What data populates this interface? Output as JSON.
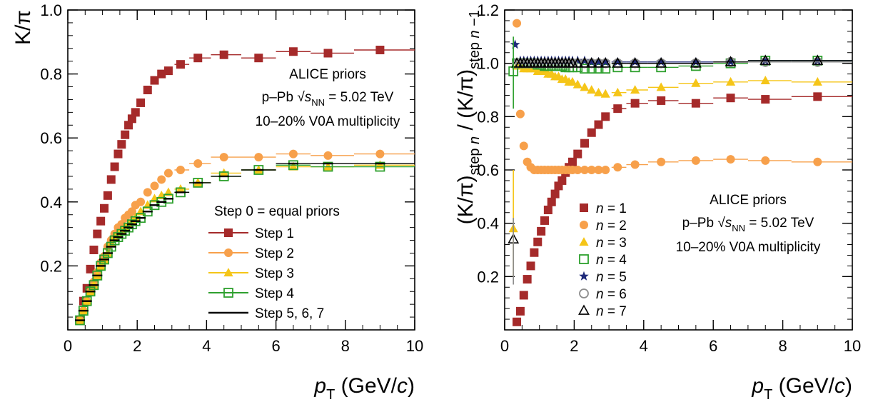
{
  "chart_data": [
    {
      "type": "scatter",
      "xlim": [
        0,
        10
      ],
      "ylim": [
        0,
        1.0
      ],
      "xlabel": "p_T (GeV/c)",
      "ylabel": "K/π",
      "xticks": [
        "0",
        "2",
        "4",
        "6",
        "8",
        "10"
      ],
      "yticks": [
        "0.2",
        "0.4",
        "0.6",
        "0.8",
        "1.0"
      ],
      "annotations": [
        "ALICE priors",
        "p–Pb √s_NN = 5.02 TeV",
        "10–20% V0A multiplicity"
      ],
      "legend_header": "Step 0 = equal priors",
      "legend_position": "bottom-right",
      "series": [
        {
          "name": "Step 1",
          "color": "#a52a2a",
          "marker": "square",
          "x": [
            0.35,
            0.45,
            0.55,
            0.65,
            0.75,
            0.85,
            0.95,
            1.05,
            1.15,
            1.25,
            1.35,
            1.45,
            1.55,
            1.65,
            1.75,
            1.85,
            1.95,
            2.1,
            2.3,
            2.5,
            2.7,
            2.9,
            3.25,
            3.75,
            4.5,
            5.5,
            6.5,
            7.5,
            9.0
          ],
          "y": [
            0.03,
            0.09,
            0.13,
            0.19,
            0.25,
            0.3,
            0.34,
            0.38,
            0.42,
            0.47,
            0.51,
            0.55,
            0.58,
            0.61,
            0.64,
            0.66,
            0.68,
            0.71,
            0.75,
            0.78,
            0.8,
            0.81,
            0.83,
            0.85,
            0.86,
            0.85,
            0.87,
            0.865,
            0.875
          ]
        },
        {
          "name": "Step 2",
          "color": "#f7a04b",
          "marker": "circle",
          "x": [
            0.35,
            0.45,
            0.55,
            0.65,
            0.75,
            0.85,
            0.95,
            1.05,
            1.15,
            1.25,
            1.35,
            1.45,
            1.55,
            1.65,
            1.75,
            1.85,
            1.95,
            2.1,
            2.3,
            2.5,
            2.7,
            2.9,
            3.25,
            3.75,
            4.5,
            5.5,
            6.5,
            7.5,
            9.0
          ],
          "y": [
            0.03,
            0.06,
            0.09,
            0.12,
            0.15,
            0.18,
            0.21,
            0.23,
            0.26,
            0.28,
            0.3,
            0.32,
            0.33,
            0.35,
            0.36,
            0.37,
            0.39,
            0.4,
            0.43,
            0.45,
            0.47,
            0.49,
            0.5,
            0.52,
            0.54,
            0.54,
            0.55,
            0.545,
            0.55
          ]
        },
        {
          "name": "Step 3",
          "color": "#f5c518",
          "marker": "triangle",
          "x": [
            0.35,
            0.45,
            0.55,
            0.65,
            0.75,
            0.85,
            0.95,
            1.05,
            1.15,
            1.25,
            1.35,
            1.45,
            1.55,
            1.65,
            1.75,
            1.85,
            1.95,
            2.1,
            2.3,
            2.5,
            2.7,
            2.9,
            3.25,
            3.75,
            4.5,
            5.5,
            6.5,
            7.5,
            9.0
          ],
          "y": [
            0.03,
            0.06,
            0.09,
            0.12,
            0.14,
            0.17,
            0.2,
            0.22,
            0.24,
            0.27,
            0.29,
            0.3,
            0.31,
            0.32,
            0.33,
            0.34,
            0.35,
            0.37,
            0.39,
            0.41,
            0.42,
            0.43,
            0.44,
            0.46,
            0.49,
            0.5,
            0.51,
            0.51,
            0.515
          ]
        },
        {
          "name": "Step 4",
          "color": "#2ea02e",
          "marker": "open-square",
          "x": [
            0.35,
            0.45,
            0.55,
            0.65,
            0.75,
            0.85,
            0.95,
            1.05,
            1.15,
            1.25,
            1.35,
            1.45,
            1.55,
            1.65,
            1.75,
            1.85,
            1.95,
            2.1,
            2.3,
            2.5,
            2.7,
            2.9,
            3.25,
            3.75,
            4.5,
            5.5,
            6.5,
            7.5,
            9.0
          ],
          "y": [
            0.03,
            0.06,
            0.09,
            0.12,
            0.14,
            0.17,
            0.2,
            0.22,
            0.24,
            0.26,
            0.28,
            0.29,
            0.3,
            0.31,
            0.32,
            0.33,
            0.34,
            0.35,
            0.37,
            0.39,
            0.4,
            0.41,
            0.43,
            0.46,
            0.48,
            0.5,
            0.515,
            0.51,
            0.51
          ]
        },
        {
          "name": "Step 5, 6, 7",
          "color": "#000000",
          "marker": "line",
          "x": [
            0.35,
            0.45,
            0.55,
            0.65,
            0.75,
            0.85,
            0.95,
            1.05,
            1.15,
            1.25,
            1.35,
            1.45,
            1.55,
            1.65,
            1.75,
            1.85,
            1.95,
            2.1,
            2.3,
            2.5,
            2.7,
            2.9,
            3.25,
            3.75,
            4.5,
            5.5,
            6.5,
            7.5,
            9.0
          ],
          "y": [
            0.03,
            0.06,
            0.09,
            0.12,
            0.14,
            0.17,
            0.2,
            0.22,
            0.24,
            0.26,
            0.28,
            0.29,
            0.3,
            0.31,
            0.32,
            0.33,
            0.34,
            0.35,
            0.37,
            0.39,
            0.4,
            0.41,
            0.43,
            0.46,
            0.48,
            0.5,
            0.52,
            0.52,
            0.52
          ]
        }
      ]
    },
    {
      "type": "scatter",
      "xlim": [
        0,
        10
      ],
      "ylim": [
        0,
        1.2
      ],
      "xlabel": "p_T (GeV/c)",
      "ylabel": "(K/π)_step n / (K/π)_step n −1",
      "xticks": [
        "0",
        "2",
        "4",
        "6",
        "8",
        "10"
      ],
      "yticks": [
        "0.2",
        "0.4",
        "0.6",
        "0.8",
        "1.0",
        "1.2"
      ],
      "annotations": [
        "ALICE priors",
        "p–Pb √s_NN = 5.02 TeV",
        "10–20% V0A multiplicity"
      ],
      "legend_position": "bottom-center",
      "series": [
        {
          "name": "n = 1",
          "color": "#a52a2a",
          "marker": "square",
          "x": [
            0.35,
            0.45,
            0.55,
            0.65,
            0.75,
            0.85,
            0.95,
            1.05,
            1.15,
            1.25,
            1.35,
            1.45,
            1.55,
            1.65,
            1.75,
            1.85,
            1.95,
            2.1,
            2.3,
            2.5,
            2.7,
            2.9,
            3.25,
            3.75,
            4.5,
            5.5,
            6.5,
            7.5,
            9.0
          ],
          "y": [
            0.03,
            0.07,
            0.13,
            0.19,
            0.24,
            0.29,
            0.33,
            0.37,
            0.41,
            0.45,
            0.48,
            0.51,
            0.54,
            0.56,
            0.59,
            0.61,
            0.63,
            0.66,
            0.7,
            0.74,
            0.77,
            0.8,
            0.83,
            0.85,
            0.86,
            0.85,
            0.87,
            0.865,
            0.875
          ]
        },
        {
          "name": "n = 2",
          "color": "#f7a04b",
          "marker": "circle",
          "x": [
            0.35,
            0.45,
            0.55,
            0.65,
            0.75,
            0.85,
            0.95,
            1.05,
            1.15,
            1.25,
            1.35,
            1.45,
            1.55,
            1.65,
            1.75,
            1.85,
            1.95,
            2.1,
            2.3,
            2.5,
            2.7,
            2.9,
            3.25,
            3.75,
            4.5,
            5.5,
            6.5,
            7.5,
            9.0
          ],
          "y": [
            1.15,
            0.81,
            0.69,
            0.63,
            0.61,
            0.6,
            0.6,
            0.6,
            0.6,
            0.6,
            0.6,
            0.6,
            0.6,
            0.6,
            0.6,
            0.6,
            0.6,
            0.6,
            0.6,
            0.6,
            0.6,
            0.6,
            0.61,
            0.62,
            0.63,
            0.635,
            0.64,
            0.635,
            0.63
          ]
        },
        {
          "name": "n = 3",
          "color": "#f5c518",
          "marker": "triangle",
          "x": [
            0.25,
            0.35,
            0.45,
            0.55,
            0.65,
            0.75,
            0.85,
            0.95,
            1.05,
            1.15,
            1.25,
            1.35,
            1.45,
            1.55,
            1.65,
            1.75,
            1.85,
            1.95,
            2.1,
            2.3,
            2.5,
            2.7,
            2.9,
            3.25,
            3.75,
            4.5,
            5.5,
            6.5,
            7.5,
            9.0
          ],
          "y": [
            0.38,
            0.99,
            0.99,
            0.98,
            0.98,
            0.98,
            0.98,
            0.97,
            0.97,
            0.97,
            0.96,
            0.96,
            0.95,
            0.95,
            0.94,
            0.94,
            0.93,
            0.93,
            0.92,
            0.91,
            0.9,
            0.89,
            0.885,
            0.89,
            0.9,
            0.91,
            0.925,
            0.93,
            0.935,
            0.93
          ]
        },
        {
          "name": "n = 4",
          "color": "#2ea02e",
          "marker": "open-square",
          "x": [
            0.25,
            0.35,
            0.45,
            0.55,
            0.65,
            0.75,
            0.85,
            0.95,
            1.05,
            1.15,
            1.25,
            1.35,
            1.45,
            1.55,
            1.65,
            1.75,
            1.85,
            1.95,
            2.1,
            2.3,
            2.5,
            2.7,
            2.9,
            3.25,
            3.75,
            4.5,
            5.5,
            6.5,
            7.5,
            9.0
          ],
          "y": [
            0.97,
            1.0,
            1.0,
            1.0,
            1.0,
            1.0,
            1.0,
            0.995,
            0.995,
            0.99,
            0.99,
            0.99,
            0.99,
            0.99,
            0.99,
            0.985,
            0.985,
            0.985,
            0.985,
            0.98,
            0.98,
            0.98,
            0.98,
            0.985,
            0.985,
            0.985,
            0.99,
            1.0,
            1.01,
            1.01
          ]
        },
        {
          "name": "n = 5",
          "color": "#1f2a7a",
          "marker": "star",
          "x": [
            0.3,
            0.45,
            0.55,
            0.65,
            0.75,
            0.85,
            0.95,
            1.05,
            1.15,
            1.25,
            1.35,
            1.45,
            1.55,
            1.65,
            1.75,
            1.85,
            1.95,
            2.1,
            2.3,
            2.5,
            2.7,
            2.9,
            3.25,
            3.75,
            4.5,
            5.5,
            6.5,
            7.5,
            9.0
          ],
          "y": [
            1.07,
            1.01,
            1.01,
            1.01,
            1.01,
            1.01,
            1.01,
            1.01,
            1.01,
            1.01,
            1.01,
            1.01,
            1.01,
            1.01,
            1.01,
            1.01,
            1.01,
            1.01,
            1.01,
            1.005,
            1.005,
            1.005,
            1.005,
            1.005,
            1.005,
            1.005,
            1.005,
            1.01,
            1.01
          ]
        },
        {
          "name": "n = 6",
          "color": "#8c8c8c",
          "marker": "open-circle",
          "x": [
            0.35,
            0.45,
            0.55,
            0.65,
            0.75,
            0.85,
            0.95,
            1.05,
            1.15,
            1.25,
            1.35,
            1.45,
            1.55,
            1.65,
            1.75,
            1.85,
            1.95,
            2.1,
            2.3,
            2.5,
            2.7,
            2.9,
            3.25,
            3.75,
            4.5,
            5.5,
            6.5,
            7.5,
            9.0
          ],
          "y": [
            1.0,
            1.0,
            1.0,
            1.0,
            1.0,
            1.0,
            1.0,
            1.0,
            1.0,
            1.0,
            1.0,
            1.0,
            1.0,
            1.0,
            1.0,
            1.0,
            1.0,
            1.0,
            1.0,
            1.0,
            1.0,
            1.0,
            1.0,
            1.0,
            1.0,
            1.0,
            1.005,
            1.005,
            1.005
          ]
        },
        {
          "name": "n = 7",
          "color": "#000000",
          "marker": "open-triangle",
          "x": [
            0.25,
            0.35,
            0.45,
            0.55,
            0.65,
            0.75,
            0.85,
            0.95,
            1.05,
            1.15,
            1.25,
            1.35,
            1.45,
            1.55,
            1.65,
            1.75,
            1.85,
            1.95,
            2.1,
            2.3,
            2.5,
            2.7,
            2.9,
            3.25,
            3.75,
            4.5,
            5.5,
            6.5,
            7.5,
            9.0
          ],
          "y": [
            0.34,
            1.0,
            1.0,
            1.0,
            1.0,
            1.0,
            1.0,
            1.0,
            1.0,
            1.0,
            1.0,
            1.0,
            1.0,
            1.0,
            1.0,
            1.0,
            1.0,
            1.0,
            1.0,
            1.0,
            1.0,
            1.0,
            1.0,
            1.0,
            1.0,
            1.0,
            1.0,
            1.005,
            1.01,
            1.01
          ]
        }
      ]
    }
  ]
}
